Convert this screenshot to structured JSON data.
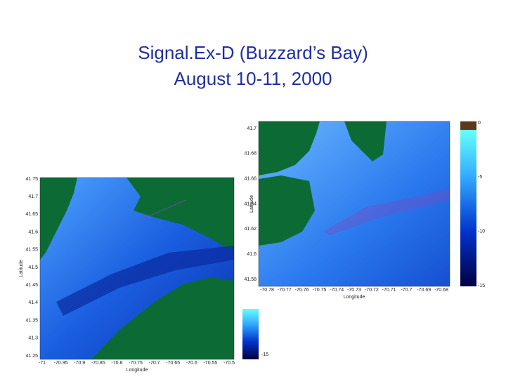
{
  "header": {
    "title_lines": [
      "Signal.Ex-D (Buzzard’s Bay)",
      "August 10-11, 2000"
    ]
  },
  "left_map": {
    "yticks": [
      "41.75",
      "41.7",
      "41.65",
      "41.6",
      "41.55",
      "41.5",
      "41.45",
      "41.4",
      "41.35",
      "41.3",
      "41.25"
    ],
    "xticks": [
      "-71",
      "-70.95",
      "-70.9",
      "-70.85",
      "-70.8",
      "-70.75",
      "-70.7",
      "-70.65",
      "-70.6",
      "-70.55",
      "-70.5"
    ],
    "xlabel": "Longitude",
    "ylabel": "Latitude",
    "colorbar_ticks": [
      "-15"
    ]
  },
  "right_map": {
    "yticks": [
      "41.7",
      "41.68",
      "41.66",
      "41.64",
      "41.62",
      "41.6",
      "41.58"
    ],
    "xticks": [
      "-70.78",
      "-70.77",
      "-70.76",
      "-70.75",
      "-70.74",
      "-70.73",
      "-70.72",
      "-70.71",
      "-70.7",
      "-70.69",
      "-70.68"
    ],
    "xlabel": "Longitude",
    "ylabel": "Latitude",
    "colorbar_ticks": [
      "0",
      "-5",
      "-10",
      "-15"
    ]
  }
}
